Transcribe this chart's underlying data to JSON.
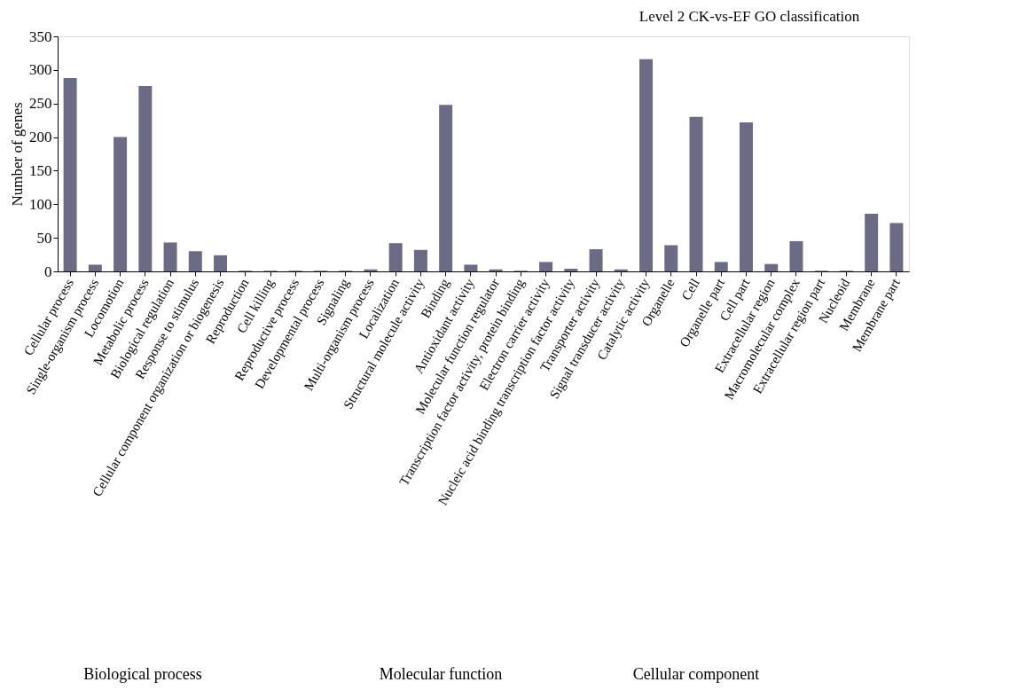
{
  "chart_data": {
    "type": "bar",
    "title": "Level 2 CK-vs-EF GO classification",
    "ylabel": "Number of genes",
    "categories": [
      "Cellular process",
      "Single-organism process",
      "Locomotion",
      "Metabolic process",
      "Biological regulation",
      "Response to stimulus",
      "Cellular component organization or biogenesis",
      "Reproduction",
      "Cell killing",
      "Reproductive process",
      "Developmental process",
      "Signaling",
      "Multi-organism process",
      "Localization",
      "Structural molecule activity",
      "Binding",
      "Antioxidant activity",
      "Molecular function regulator",
      "Transcription factor activity, protein binding",
      "Electron carrier activity",
      "Nucleic acid binding transcription factor activity",
      "Transporter activity",
      "Signal transducer activity",
      "Catalytic activity",
      "Organelle",
      "Cell",
      "Organelle part",
      "Cell part",
      "Extracellular region",
      "Macromolecular complex",
      "Extracellular region part",
      "Nucleoid",
      "Membrane",
      "Membrane part"
    ],
    "values": [
      288,
      10,
      200,
      276,
      43,
      30,
      24,
      1,
      1,
      1,
      1,
      1,
      3,
      42,
      32,
      248,
      10,
      3,
      1,
      14,
      4,
      33,
      3,
      316,
      39,
      230,
      14,
      222,
      11,
      45,
      1,
      1,
      86,
      72
    ],
    "color": "#6b6b85",
    "ylim": [
      0,
      350
    ],
    "yticks": [
      0,
      50,
      100,
      150,
      200,
      250,
      300,
      350
    ],
    "grid": false,
    "annotations": [
      "Biological process",
      "Molecular function",
      "Cellular component"
    ]
  }
}
